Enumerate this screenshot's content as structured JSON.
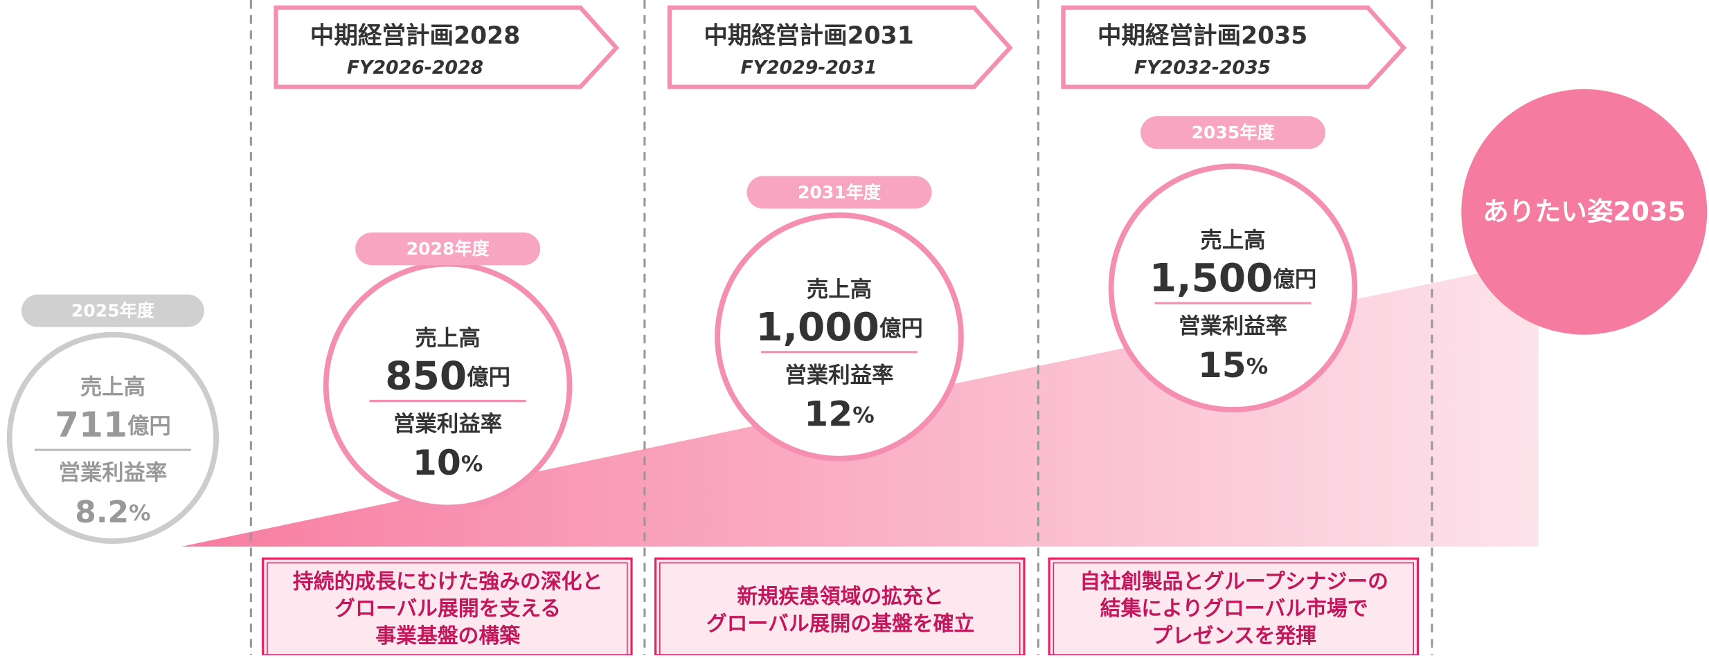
{
  "baseline": {
    "year": "2025年度",
    "sales_label": "売上高",
    "sales": "711",
    "sales_unit": "億円",
    "margin_label": "営業利益率",
    "margin": "8.2",
    "margin_unit": "%"
  },
  "plans": [
    {
      "title": "中期経営計画2028",
      "period": "FY2026-2028",
      "year": "2028年度",
      "sales_label": "売上高",
      "sales": "850",
      "sales_unit": "億円",
      "margin_label": "営業利益率",
      "margin": "10",
      "margin_unit": "%",
      "theme": [
        "持続的成長にむけた強みの深化と",
        "グローバル展開を支える",
        "事業基盤の構築"
      ]
    },
    {
      "title": "中期経営計画2031",
      "period": "FY2029-2031",
      "year": "2031年度",
      "sales_label": "売上高",
      "sales": "1,000",
      "sales_unit": "億円",
      "margin_label": "営業利益率",
      "margin": "12",
      "margin_unit": "%",
      "theme": [
        "新規疾患領域の拡充と",
        "グローバル展開の基盤を確立"
      ]
    },
    {
      "title": "中期経営計画2035",
      "period": "FY2032-2035",
      "year": "2035年度",
      "sales_label": "売上高",
      "sales": "1,500",
      "sales_unit": "億円",
      "margin_label": "営業利益率",
      "margin": "15",
      "margin_unit": "%",
      "theme": [
        "自社創製品とグループシナジーの",
        "結集によりグローバル市場で",
        "プレゼンスを発揮"
      ]
    }
  ],
  "vision": "ありたい姿2035"
}
